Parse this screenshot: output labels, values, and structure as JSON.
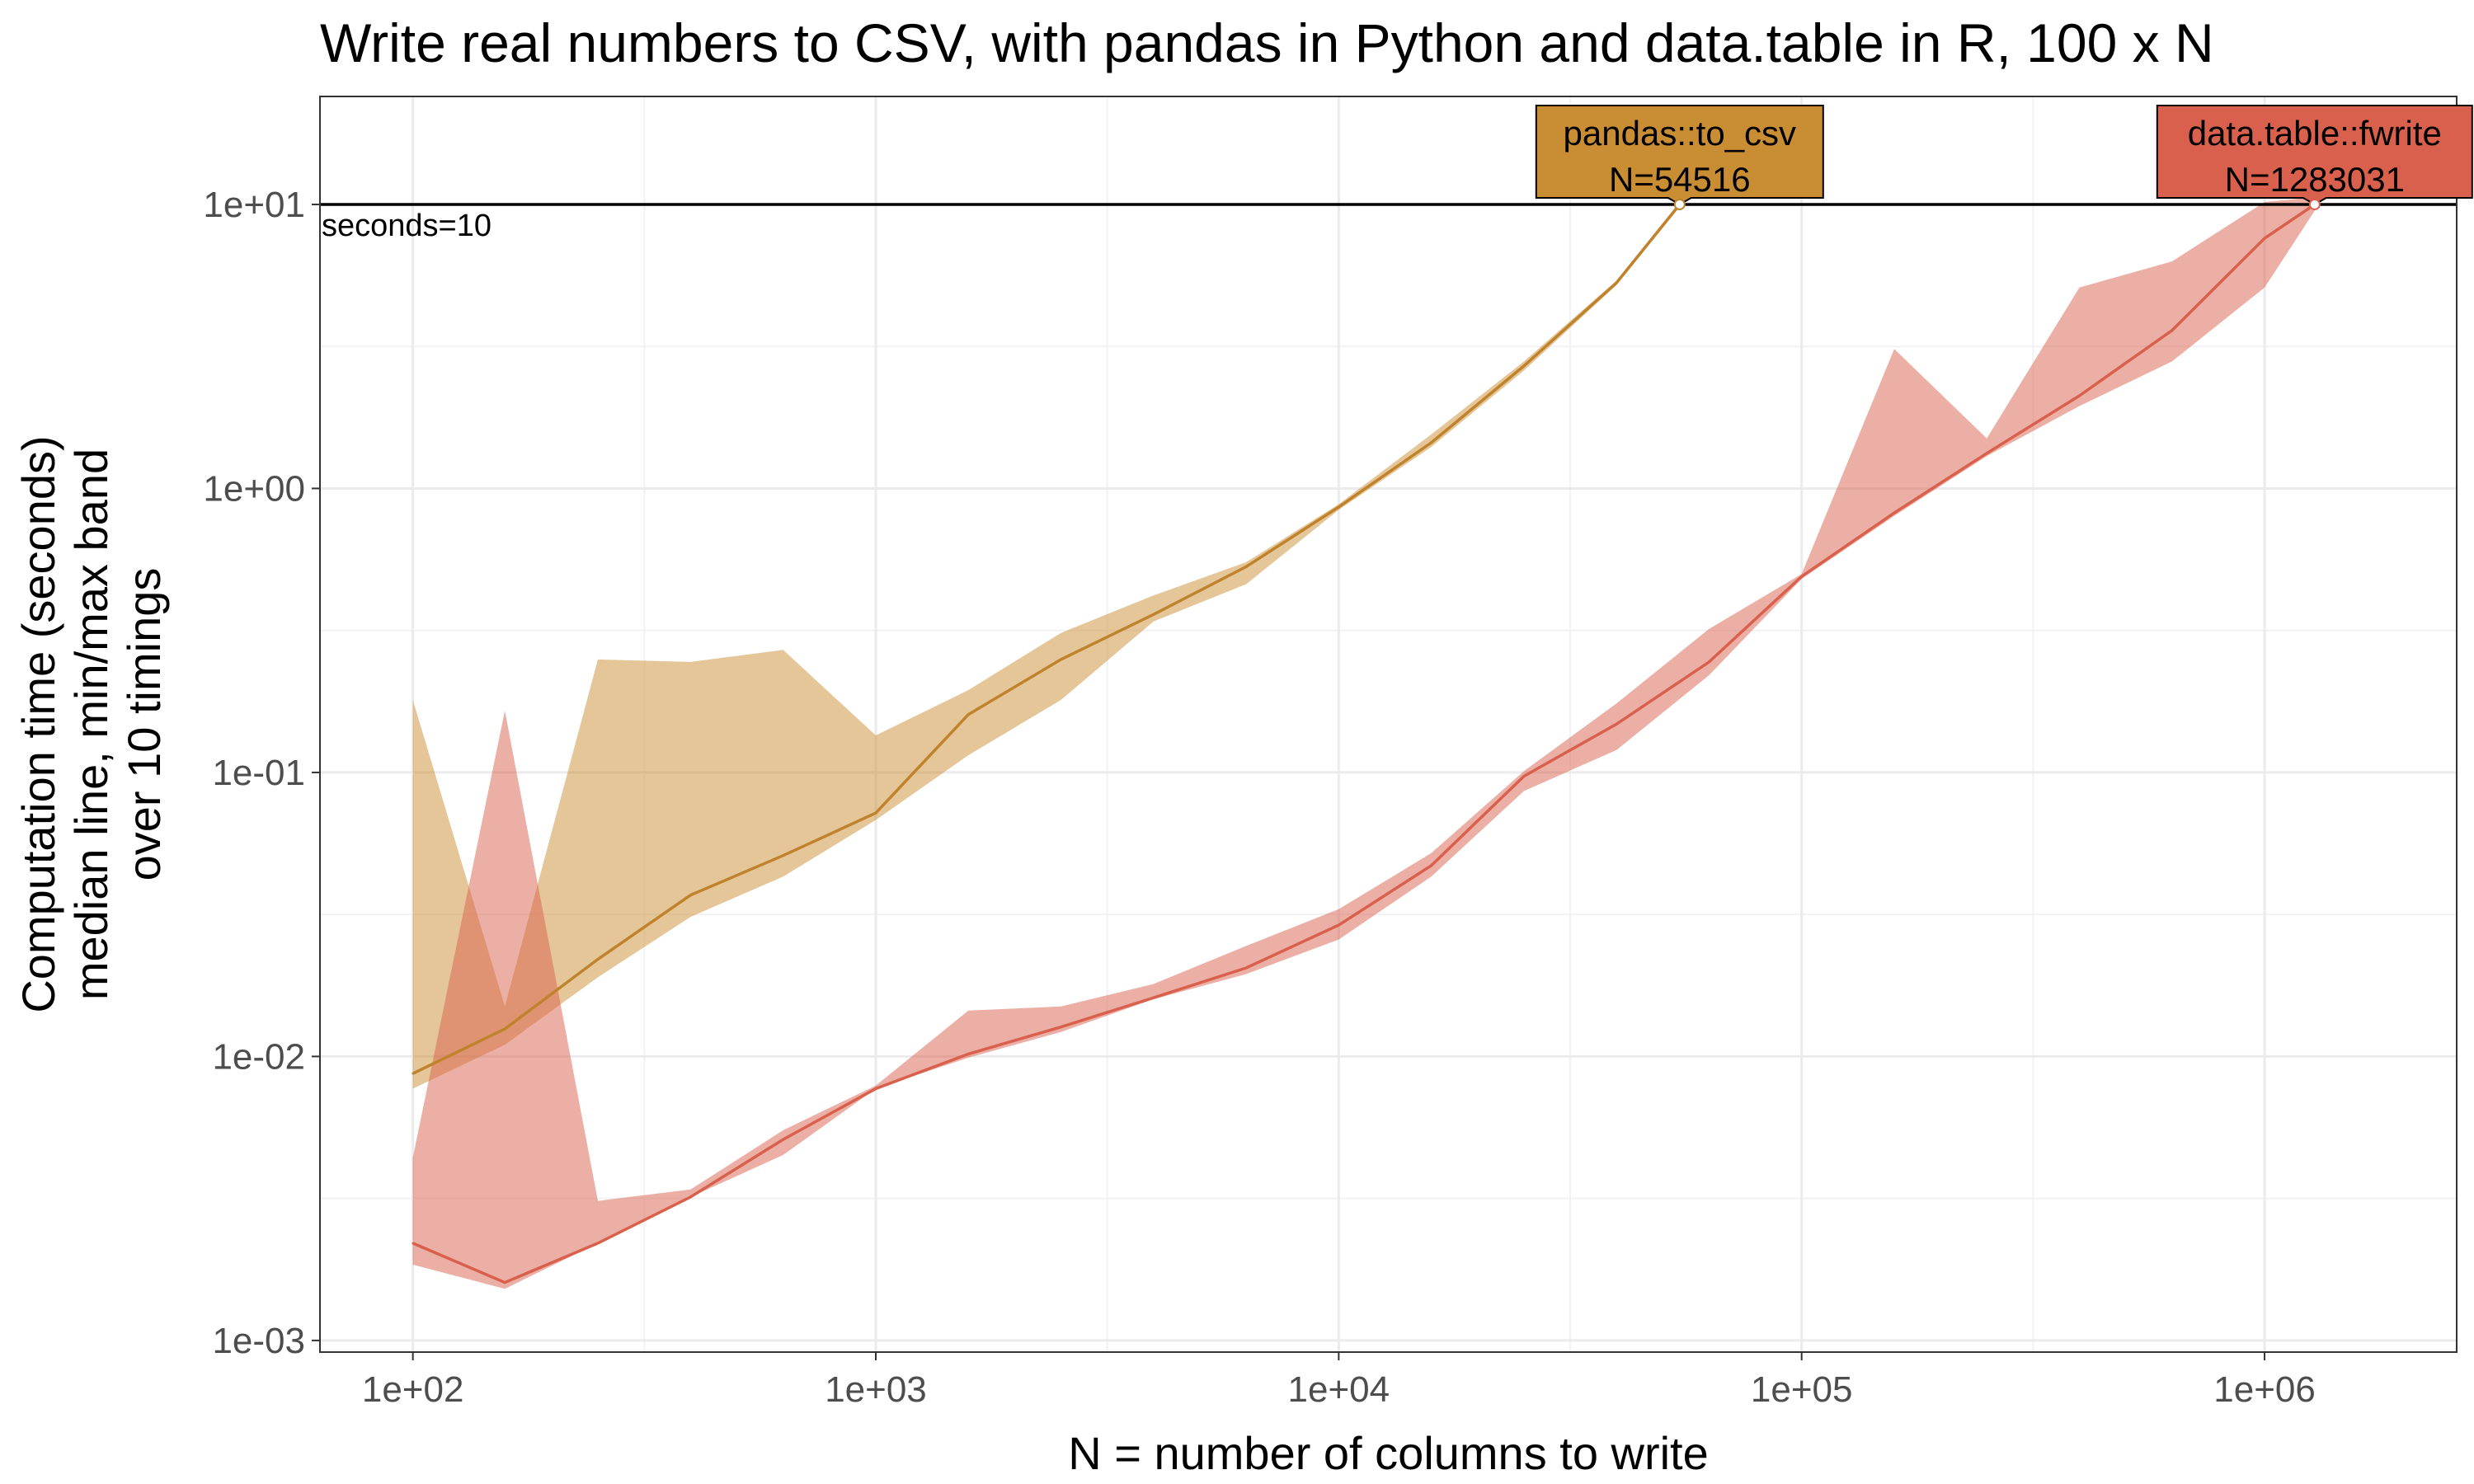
{
  "chart_data": {
    "type": "line",
    "title": "Write real numbers to CSV, with pandas in Python and data.table in R, 100 x N",
    "xlabel": "N = number of columns to write",
    "ylabel_lines": [
      "Computation time (seconds)",
      "median line, min/max band",
      "over 10 timings"
    ],
    "x_scale": "log10",
    "y_scale": "log10",
    "xlim": [
      63,
      2600000
    ],
    "ylim": [
      0.00091,
      24
    ],
    "x_ticks": [
      100,
      1000,
      10000,
      100000,
      1000000
    ],
    "x_tick_labels": [
      "1e+02",
      "1e+03",
      "1e+04",
      "1e+05",
      "1e+06"
    ],
    "y_ticks": [
      0.001,
      0.01,
      0.1,
      1,
      10
    ],
    "y_tick_labels": [
      "1e-03",
      "1e-02",
      "1e-01",
      "1e+00",
      "1e+01"
    ],
    "grid": true,
    "reference_line": {
      "y": 10,
      "label": "seconds=10"
    },
    "series": [
      {
        "name": "pandas::to_csv",
        "color": "#c0832c",
        "band_color": "#c98d34",
        "x": [
          100,
          158,
          251,
          398,
          631,
          1000,
          1585,
          2512,
          3981,
          6310,
          10000,
          15849,
          25119,
          39811,
          54516
        ],
        "median": [
          0.0087,
          0.0125,
          0.022,
          0.037,
          0.051,
          0.072,
          0.16,
          0.25,
          0.36,
          0.53,
          0.86,
          1.45,
          2.7,
          5.3,
          10.0
        ],
        "min": [
          0.0077,
          0.011,
          0.019,
          0.031,
          0.043,
          0.068,
          0.115,
          0.18,
          0.34,
          0.46,
          0.84,
          1.4,
          2.6,
          5.2,
          9.8
        ],
        "max": [
          0.18,
          0.015,
          0.25,
          0.245,
          0.27,
          0.135,
          0.195,
          0.31,
          0.42,
          0.55,
          0.88,
          1.55,
          2.8,
          5.4,
          10.2
        ],
        "end_label": {
          "name": "pandas::to_csv",
          "n_label": "N=54516",
          "x": 54516,
          "y": 10
        }
      },
      {
        "name": "data.table::fwrite",
        "color": "#d9604c",
        "band_color": "#d9604c",
        "x": [
          100,
          158,
          251,
          398,
          631,
          1000,
          1585,
          2512,
          3981,
          6310,
          10000,
          15849,
          25119,
          39811,
          63096,
          100000,
          158489,
          251189,
          398107,
          630957,
          1000000,
          1283031
        ],
        "median": [
          0.0022,
          0.0016,
          0.0022,
          0.0032,
          0.0051,
          0.0077,
          0.0102,
          0.0127,
          0.0161,
          0.0205,
          0.029,
          0.047,
          0.097,
          0.148,
          0.245,
          0.49,
          0.82,
          1.33,
          2.12,
          3.6,
          7.6,
          10.0
        ],
        "min": [
          0.00185,
          0.00152,
          0.0022,
          0.0032,
          0.0045,
          0.0077,
          0.0099,
          0.0122,
          0.0159,
          0.0195,
          0.0258,
          0.043,
          0.086,
          0.12,
          0.22,
          0.48,
          0.8,
          1.3,
          1.95,
          2.8,
          5.1,
          9.5
        ],
        "max": [
          0.0044,
          0.165,
          0.0031,
          0.0034,
          0.0055,
          0.0079,
          0.0145,
          0.015,
          0.018,
          0.0245,
          0.033,
          0.052,
          0.101,
          0.175,
          0.32,
          0.5,
          3.1,
          1.5,
          5.1,
          6.3,
          10.2,
          10.6
        ],
        "end_label": {
          "name": "data.table::fwrite",
          "n_label": "N=1283031",
          "x": 1283031,
          "y": 10
        }
      }
    ]
  }
}
